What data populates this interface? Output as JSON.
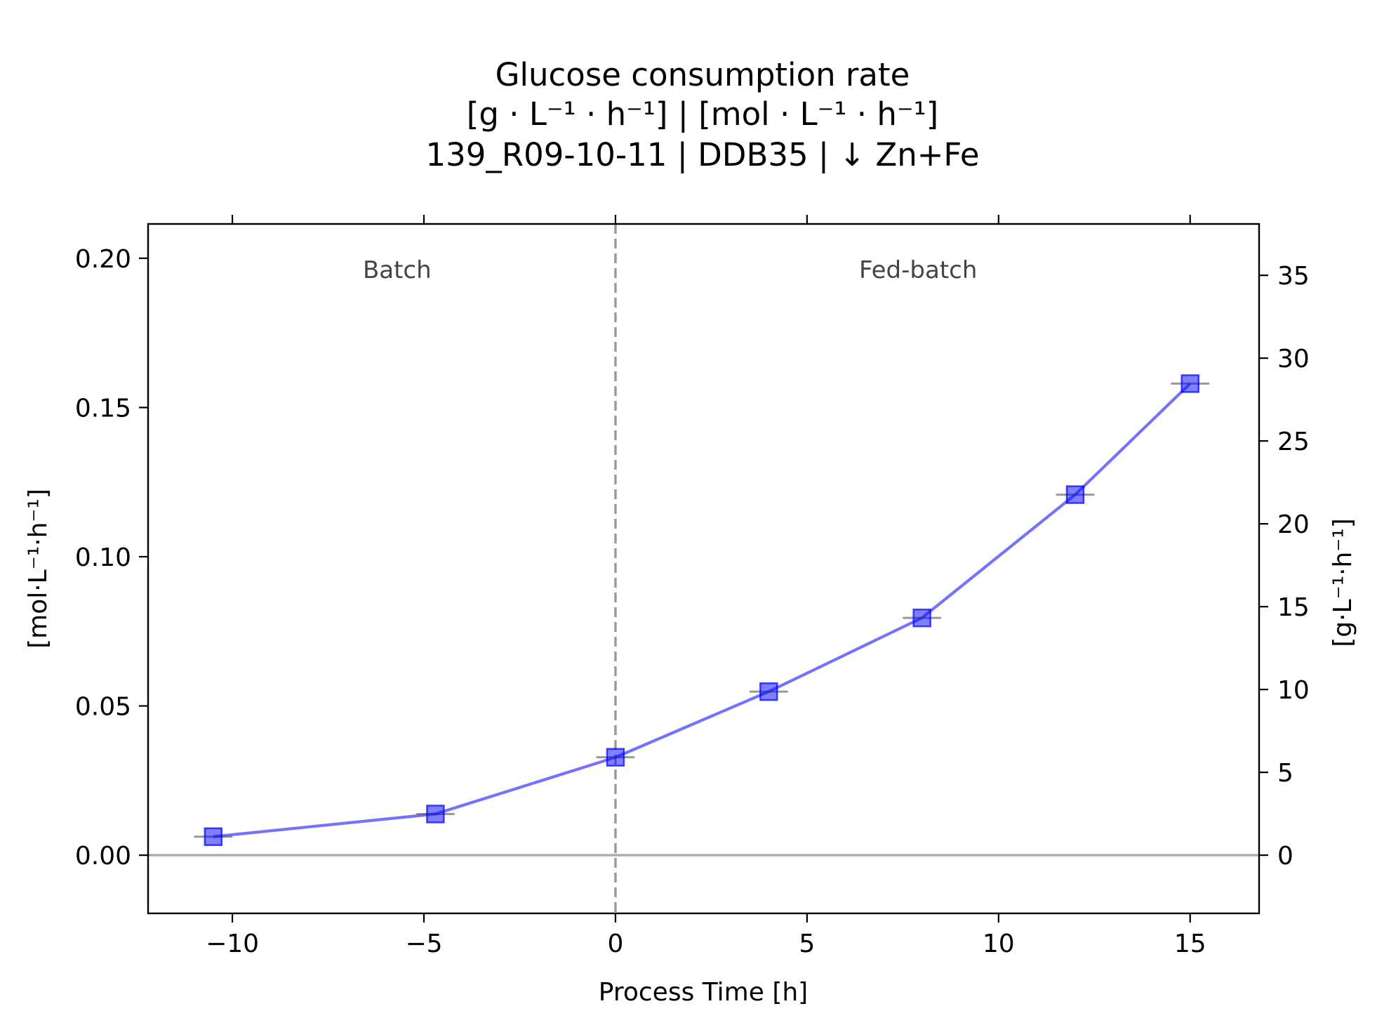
{
  "chart_data": {
    "type": "line",
    "title": [
      "Glucose consumption rate",
      "[g · L⁻¹ · h⁻¹]    |    [mol · L⁻¹ · h⁻¹]",
      "139_R09-10-11  |  DDB35  |  ↓ Zn+Fe"
    ],
    "xlabel": "Process Time [h]",
    "ylabel_left": "[mol·L⁻¹·h⁻¹]",
    "ylabel_right": "[g·L⁻¹·h⁻¹]",
    "xlim": [
      -12.2,
      16.8
    ],
    "ylim_left": [
      -0.0195,
      0.2115
    ],
    "ylim_right": [
      -3.513,
      38.1
    ],
    "x_ticks": [
      -10,
      -5,
      0,
      5,
      10,
      15
    ],
    "x_tick_labels": [
      "−10",
      "−5",
      "0",
      "5",
      "10",
      "15"
    ],
    "y_left_ticks": [
      0.0,
      0.05,
      0.1,
      0.15,
      0.2
    ],
    "y_left_tick_labels": [
      "0.00",
      "0.05",
      "0.10",
      "0.15",
      "0.20"
    ],
    "y_right_ticks": [
      0,
      5,
      10,
      15,
      20,
      25,
      30,
      35
    ],
    "y_right_tick_labels": [
      "0",
      "5",
      "10",
      "15",
      "20",
      "25",
      "30",
      "35"
    ],
    "phase_boundary_x": 0,
    "phases": [
      {
        "label": "Batch",
        "x": -5.7
      },
      {
        "label": "Fed-batch",
        "x": 7.9
      }
    ],
    "series": [
      {
        "name": "Glucose consumption rate",
        "color": "#0000ff",
        "marker": "square",
        "x": [
          -10.5,
          -4.7,
          0.0,
          4.0,
          8.0,
          12.0,
          15.0
        ],
        "y": [
          0.0062,
          0.0138,
          0.0328,
          0.0548,
          0.0795,
          0.1208,
          0.158
        ],
        "error_x": [
          0.5,
          0.5,
          0.5,
          0.5,
          0.5,
          0.5,
          0.5
        ]
      }
    ],
    "reference_line_y": 0,
    "grid": false
  }
}
